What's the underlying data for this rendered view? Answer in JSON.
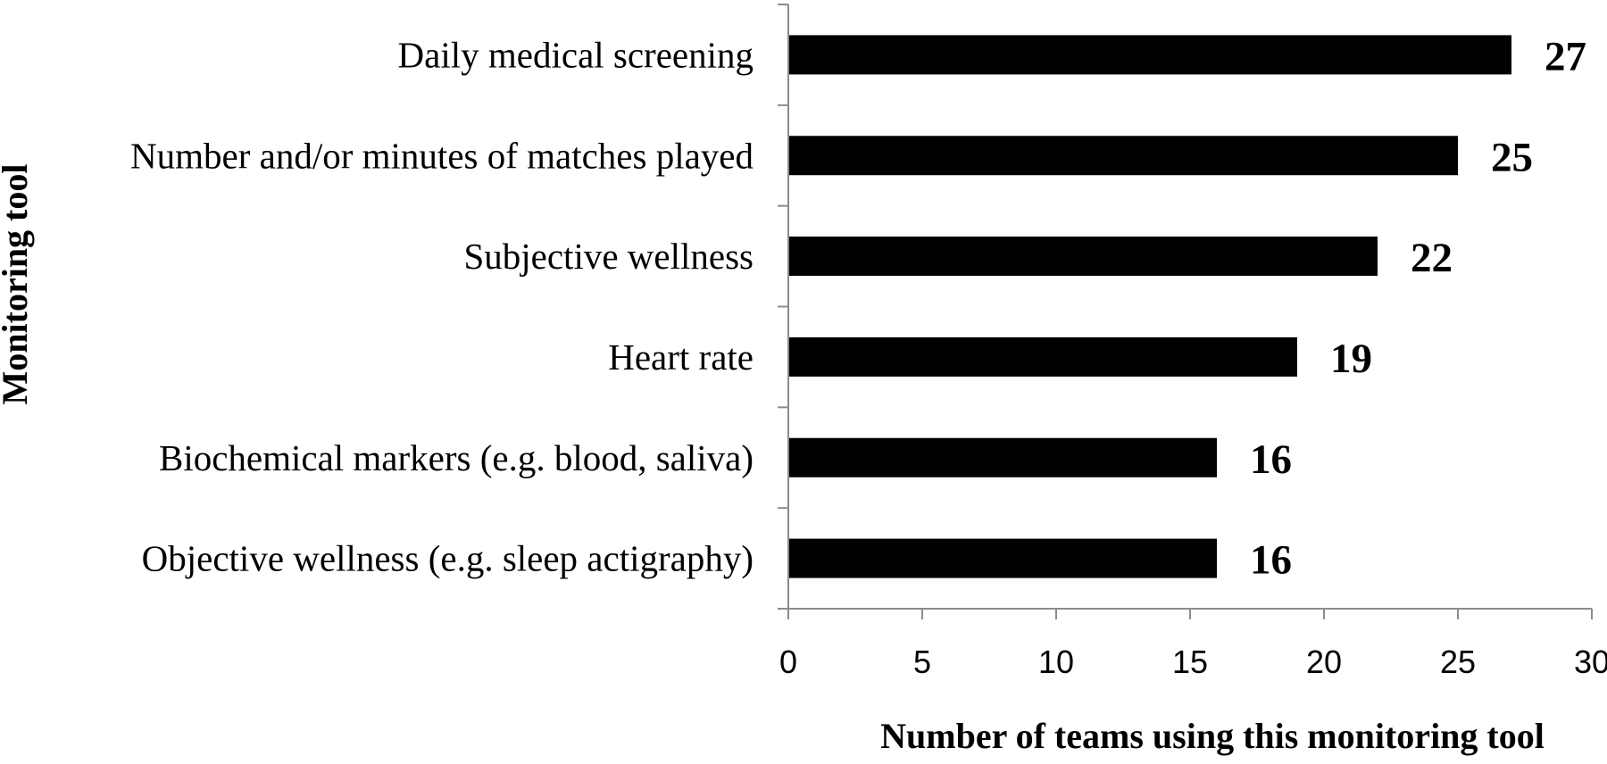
{
  "chart_data": {
    "type": "bar",
    "orientation": "horizontal",
    "categories": [
      "Daily medical screening",
      "Number and/or minutes of matches played",
      "Subjective wellness",
      "Heart rate",
      "Biochemical markers (e.g. blood, saliva)",
      "Objective wellness (e.g. sleep actigraphy)"
    ],
    "values": [
      27,
      25,
      22,
      19,
      16,
      16
    ],
    "value_labels": [
      "27",
      "25",
      "22",
      "19",
      "16",
      "16"
    ],
    "xlabel": "Number of teams using this monitoring tool",
    "ylabel": "Monitoring tool",
    "xlim": [
      0,
      30
    ],
    "xticks": [
      0,
      5,
      10,
      15,
      20,
      25,
      30
    ],
    "xtick_labels": [
      "0",
      "5",
      "10",
      "15",
      "20",
      "25",
      "30"
    ],
    "grid": false,
    "legend": "none",
    "bar_color": "#000000"
  }
}
